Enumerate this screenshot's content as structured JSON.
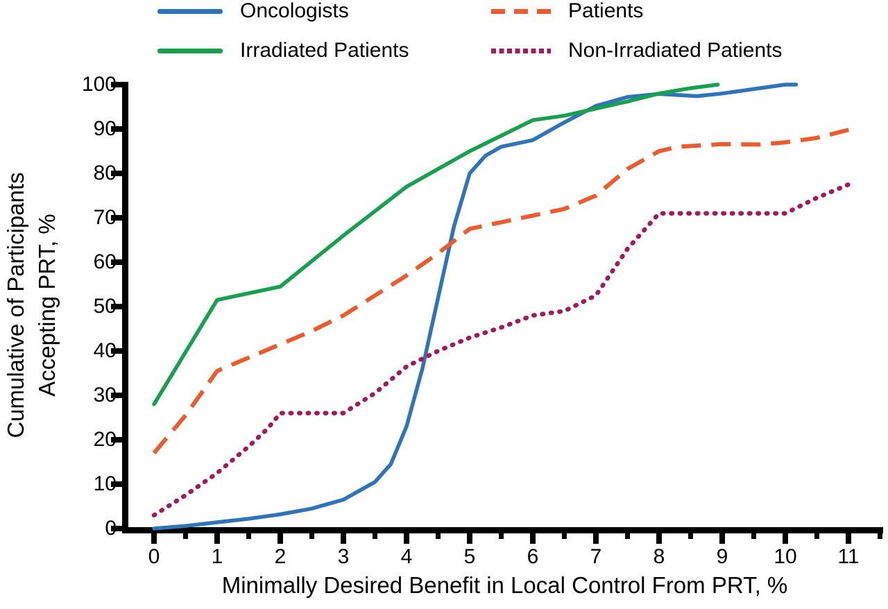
{
  "figure": {
    "background": "#ffffff"
  },
  "legend": {
    "items": [
      {
        "label": "Oncologists",
        "series": "oncologists"
      },
      {
        "label": "Irradiated Patients",
        "series": "irradiated_patients"
      },
      {
        "label": "Patients",
        "series": "patients"
      },
      {
        "label": "Non-Irradiated Patients",
        "series": "non_irradiated_patients"
      }
    ]
  },
  "axes": {
    "x": {
      "label": "Minimally Desired Benefit in Local Control From PRT, %",
      "ticks": [
        0,
        1,
        2,
        3,
        4,
        5,
        6,
        7,
        8,
        9,
        10,
        11
      ],
      "minor_tick_step": 0.5,
      "range": [
        0,
        11.5
      ]
    },
    "y": {
      "label_line1": "Cumulative of Participants",
      "label_line2": "Accepting PRT, %",
      "ticks": [
        0,
        10,
        20,
        30,
        40,
        50,
        60,
        70,
        80,
        90,
        100
      ],
      "range": [
        0,
        100
      ]
    }
  },
  "colors": {
    "axis": "#000000",
    "text": "#000000"
  },
  "chart_data": {
    "type": "line",
    "title": "",
    "xlabel": "Minimally Desired Benefit in Local Control From PRT, %",
    "ylabel": "Cumulative of Participants Accepting PRT, %",
    "xlim": [
      0,
      11.5
    ],
    "ylim": [
      0,
      100
    ],
    "grid": false,
    "legend_position": "top",
    "series": [
      {
        "name": "Oncologists",
        "key": "oncologists",
        "color": "#2F74B8",
        "style": "solid",
        "points": [
          [
            0,
            0
          ],
          [
            0.5,
            0.6
          ],
          [
            1,
            1.4
          ],
          [
            1.5,
            2.2
          ],
          [
            2,
            3.2
          ],
          [
            2.5,
            4.5
          ],
          [
            3,
            6.5
          ],
          [
            3.5,
            10.5
          ],
          [
            3.75,
            14.5
          ],
          [
            4,
            23
          ],
          [
            4.25,
            36
          ],
          [
            4.5,
            52
          ],
          [
            4.75,
            68
          ],
          [
            5,
            80
          ],
          [
            5.25,
            84
          ],
          [
            5.5,
            86
          ],
          [
            6,
            87.5
          ],
          [
            6.5,
            91.5
          ],
          [
            7,
            95.2
          ],
          [
            7.5,
            97.2
          ],
          [
            8,
            97.9
          ],
          [
            8.6,
            97.4
          ],
          [
            9,
            98
          ],
          [
            9.5,
            99
          ],
          [
            10,
            100
          ],
          [
            10.17,
            100
          ]
        ]
      },
      {
        "name": "Irradiated Patients",
        "key": "irradiated_patients",
        "color": "#18A04F",
        "style": "solid",
        "points": [
          [
            0,
            28
          ],
          [
            1,
            51.5
          ],
          [
            2,
            54.5
          ],
          [
            3,
            66
          ],
          [
            4,
            77
          ],
          [
            5,
            85
          ],
          [
            6,
            92
          ],
          [
            6.5,
            93
          ],
          [
            7,
            94.6
          ],
          [
            7.5,
            96.2
          ],
          [
            8,
            98
          ],
          [
            8.5,
            99.2
          ],
          [
            8.93,
            100
          ]
        ]
      },
      {
        "name": "Patients",
        "key": "patients",
        "color": "#EC5B2D",
        "style": "dashed",
        "points": [
          [
            0,
            17
          ],
          [
            0.5,
            25.5
          ],
          [
            1,
            35.5
          ],
          [
            1.5,
            38.5
          ],
          [
            2,
            41.5
          ],
          [
            2.5,
            44.5
          ],
          [
            3,
            48
          ],
          [
            3.5,
            52.5
          ],
          [
            4,
            57
          ],
          [
            4.5,
            62
          ],
          [
            5,
            67.5
          ],
          [
            5.5,
            69
          ],
          [
            6,
            70.5
          ],
          [
            6.5,
            72
          ],
          [
            7,
            75
          ],
          [
            7.5,
            81
          ],
          [
            8,
            85
          ],
          [
            8.3,
            86
          ],
          [
            9,
            86.6
          ],
          [
            9.6,
            86.5
          ],
          [
            10,
            87
          ],
          [
            10.5,
            88
          ],
          [
            11.05,
            90
          ]
        ]
      },
      {
        "name": "Non-Irradiated Patients",
        "key": "non_irradiated_patients",
        "color": "#A11A5B",
        "style": "dotted",
        "points": [
          [
            0,
            3
          ],
          [
            0.5,
            7.5
          ],
          [
            1,
            12.5
          ],
          [
            1.5,
            18.5
          ],
          [
            1.8,
            22.5
          ],
          [
            2,
            26
          ],
          [
            3,
            26
          ],
          [
            3.5,
            30.5
          ],
          [
            4,
            36.5
          ],
          [
            4.5,
            40
          ],
          [
            5,
            43
          ],
          [
            5.5,
            45.3
          ],
          [
            6,
            48
          ],
          [
            6.5,
            49
          ],
          [
            7,
            52.5
          ],
          [
            7.5,
            63
          ],
          [
            8,
            71
          ],
          [
            9,
            71
          ],
          [
            10,
            71
          ],
          [
            10.5,
            74.5
          ],
          [
            11.05,
            77.8
          ]
        ]
      }
    ]
  }
}
